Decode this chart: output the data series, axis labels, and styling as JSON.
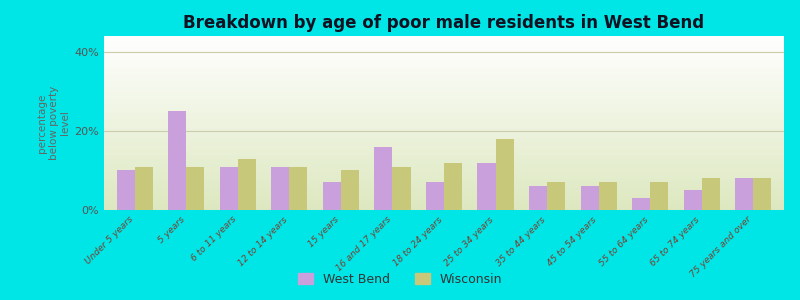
{
  "title": "Breakdown by age of poor male residents in West Bend",
  "ylabel": "percentage\nbelow poverty\nlevel",
  "categories": [
    "Under 5 years",
    "5 years",
    "6 to 11 years",
    "12 to 14 years",
    "15 years",
    "16 and 17 years",
    "18 to 24 years",
    "25 to 34 years",
    "35 to 44 years",
    "45 to 54 years",
    "55 to 64 years",
    "65 to 74 years",
    "75 years and over"
  ],
  "west_bend": [
    10,
    25,
    11,
    11,
    7,
    16,
    7,
    12,
    6,
    6,
    3,
    5,
    8
  ],
  "wisconsin": [
    11,
    11,
    13,
    11,
    10,
    11,
    12,
    18,
    7,
    7,
    7,
    8,
    8
  ],
  "ylim": [
    0,
    44
  ],
  "yticks": [
    0,
    20,
    40
  ],
  "ytick_labels": [
    "0%",
    "20%",
    "40%"
  ],
  "bar_color_wb": "#c9a0dc",
  "bar_color_wi": "#c8c87a",
  "background_color_plot_top": "#ffffff",
  "background_color_plot_bot": "#dde8c0",
  "background_color_fig": "#00e5e5",
  "title_color": "#111122",
  "grid_color": "#ccccaa",
  "legend_wb": "West Bend",
  "legend_wi": "Wisconsin",
  "bar_width": 0.35
}
